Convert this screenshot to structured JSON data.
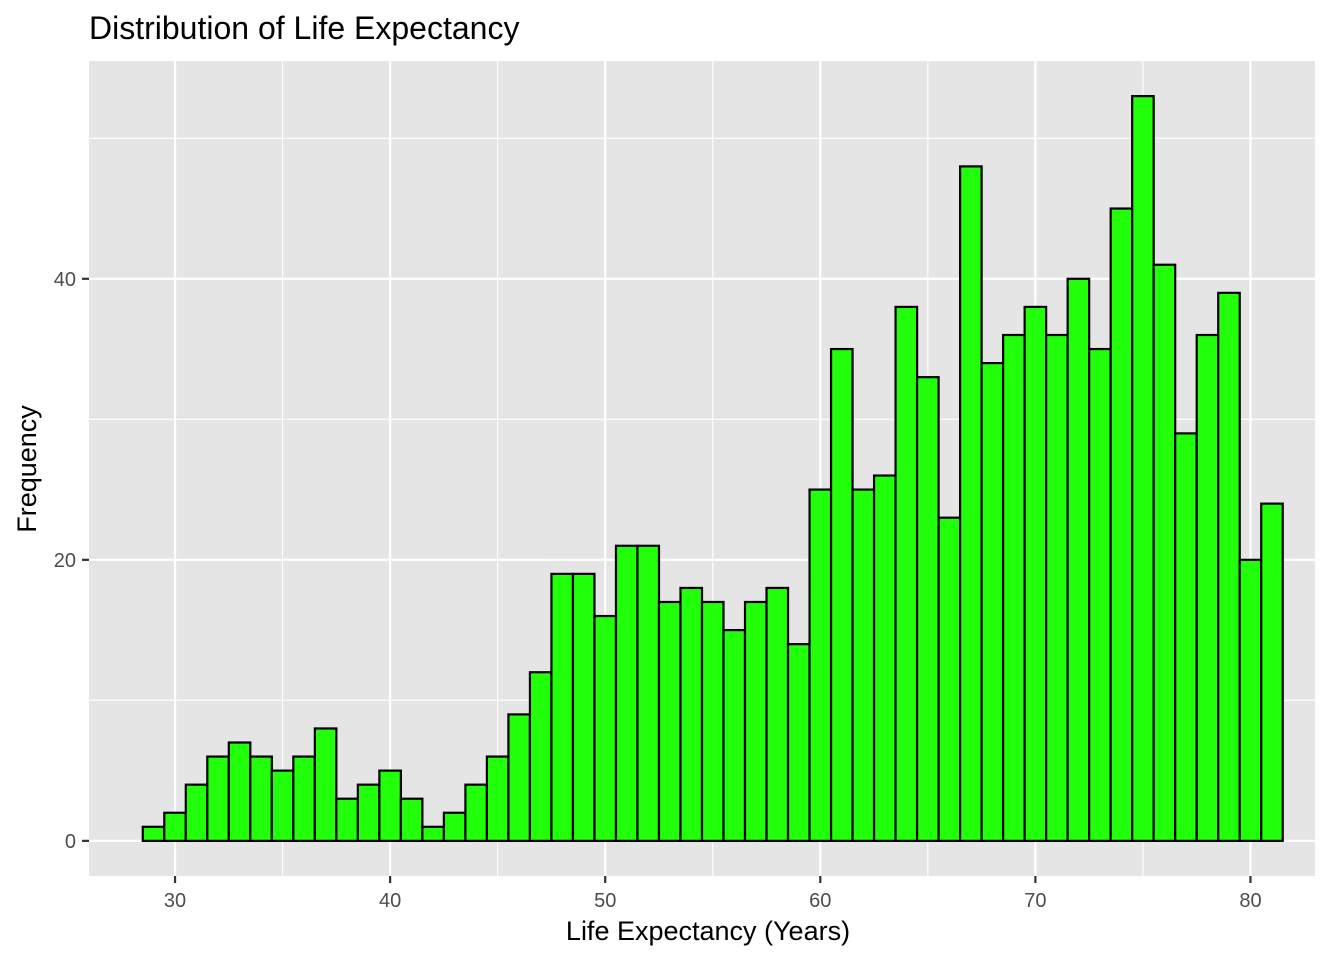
{
  "chart_data": {
    "type": "bar",
    "title": "Distribution of Life Expectancy",
    "xlabel": "Life Expectancy (Years)",
    "ylabel": "Frequency",
    "xlim": [
      26,
      83
    ],
    "ylim": [
      -2.5,
      55.5
    ],
    "x_ticks": [
      30,
      40,
      50,
      60,
      70,
      80
    ],
    "x_tick_labels": [
      "30",
      "40",
      "50",
      "60",
      "70",
      "80"
    ],
    "y_ticks": [
      0,
      20,
      40
    ],
    "y_tick_labels": [
      "0",
      "20",
      "40"
    ],
    "grid": true,
    "bin_width": 1,
    "bin_start": 28.5,
    "values": [
      1,
      2,
      4,
      6,
      7,
      6,
      5,
      6,
      8,
      3,
      4,
      5,
      3,
      1,
      2,
      4,
      6,
      9,
      12,
      19,
      19,
      16,
      21,
      21,
      17,
      18,
      17,
      15,
      17,
      18,
      14,
      25,
      35,
      25,
      26,
      38,
      33,
      23,
      48,
      34,
      36,
      38,
      36,
      40,
      35,
      45,
      53,
      41,
      29,
      36,
      39,
      20,
      24
    ],
    "colors": {
      "bar_fill": "#22ff0b",
      "bar_stroke": "#000000",
      "panel": "#e5e5e5",
      "grid": "#ffffff"
    }
  }
}
